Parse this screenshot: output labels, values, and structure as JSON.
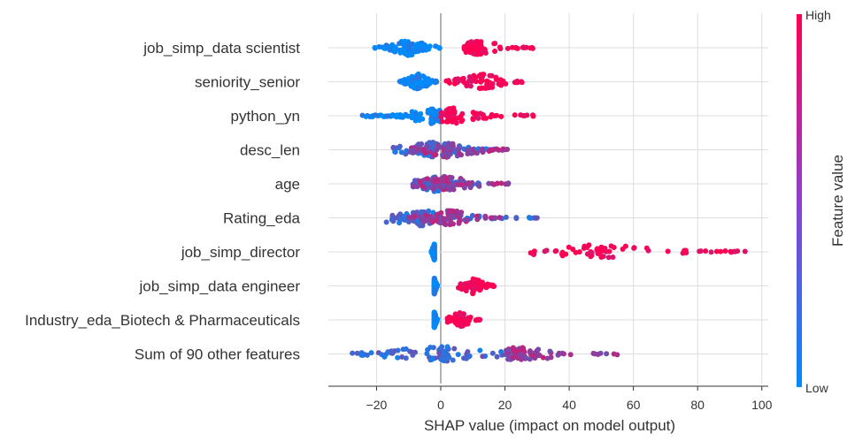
{
  "chart_data": {
    "type": "scatter",
    "subtype": "shap-beeswarm",
    "title": "",
    "xlabel": "SHAP value (impact on model output)",
    "xlim": [
      -35,
      102
    ],
    "xticks": [
      -20,
      0,
      20,
      40,
      60,
      80,
      100
    ],
    "grid": true,
    "colorbar": {
      "label": "Feature value",
      "high_label": "High",
      "low_label": "Low",
      "low_color": "#008bfb",
      "high_color": "#ff0052"
    },
    "features": [
      {
        "name": "job_simp_data scientist",
        "high_range": [
          7,
          29
        ],
        "low_range": [
          -21,
          0
        ],
        "low_center": -10,
        "high_center": 12
      },
      {
        "name": "seniority_senior",
        "high_range": [
          1,
          26
        ],
        "low_range": [
          -13,
          -1
        ],
        "low_center": -7,
        "high_center": 13
      },
      {
        "name": "python_yn",
        "high_range": [
          0,
          30
        ],
        "low_range": [
          -25,
          0
        ],
        "low_center": -3,
        "high_center": 4
      },
      {
        "name": "desc_len",
        "high_range": [
          -10,
          22
        ],
        "low_range": [
          -15,
          21
        ],
        "low_center": -3,
        "high_center": 2
      },
      {
        "name": "age",
        "high_range": [
          -9,
          23
        ],
        "low_range": [
          -9,
          13
        ],
        "low_center": -2,
        "high_center": 1
      },
      {
        "name": "Rating_eda",
        "high_range": [
          -10,
          19
        ],
        "low_range": [
          -17,
          32
        ],
        "low_center": -6,
        "high_center": 3
      },
      {
        "name": "job_simp_director",
        "high_range": [
          27,
          95
        ],
        "low_range": [
          -3,
          -2
        ],
        "low_center": -2,
        "high_center": 50
      },
      {
        "name": "job_simp_data engineer",
        "high_range": [
          5,
          17
        ],
        "low_range": [
          -2,
          -1
        ],
        "low_center": -2,
        "high_center": 10
      },
      {
        "name": "Industry_eda_Biotech & Pharmaceuticals",
        "high_range": [
          2,
          13
        ],
        "low_range": [
          -2,
          -1
        ],
        "low_center": -2,
        "high_center": 6
      },
      {
        "name": "Sum of 90 other features",
        "high_range": [
          20,
          59
        ],
        "low_range": [
          -28,
          31
        ],
        "low_center": 0,
        "high_center": 25
      }
    ]
  }
}
